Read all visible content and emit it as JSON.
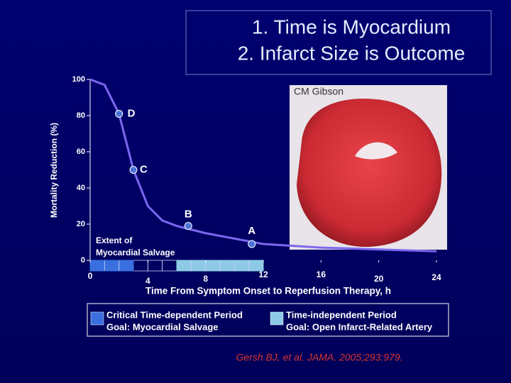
{
  "chart_data": {
    "type": "line",
    "title": [
      "1. Time is Myocardium",
      "2. Infarct Size is Outcome"
    ],
    "ylabel": "Mortality Reduction (%)",
    "xlabel": "Time From Symptom Onset to Reperfusion Therapy, h",
    "xlim": [
      0,
      24
    ],
    "xticks": [
      0,
      4,
      8,
      12,
      16,
      20,
      24
    ],
    "ylim": [
      0,
      100
    ],
    "yticks": [
      0,
      20,
      40,
      60,
      80,
      100
    ],
    "series": [
      {
        "color": "#7b68ee",
        "x": [
          0,
          1,
          2,
          3,
          4,
          5,
          6,
          8,
          12,
          16,
          20,
          24
        ],
        "values": [
          100,
          97,
          81,
          50,
          30,
          22,
          19,
          15,
          9,
          7,
          6,
          5
        ]
      }
    ],
    "points": [
      {
        "label": "D",
        "x": 2,
        "y": 81
      },
      {
        "label": "C",
        "x": 3,
        "y": 50
      },
      {
        "label": "B",
        "x": 6.8,
        "y": 19
      },
      {
        "label": "A",
        "x": 11.2,
        "y": 9
      }
    ],
    "point_color": "#4a72d8",
    "annotations": [
      "Extent of",
      "Myocardial Salvage"
    ],
    "periods": [
      {
        "name": "Critical Time-dependent Period",
        "goal": "Goal: Myocardial Salvage",
        "color": "#3a6fe0",
        "x": [
          0,
          3
        ]
      },
      {
        "name": "Time-independent Period",
        "goal": "Goal: Open Infarct-Related Artery",
        "color": "#8ecae6",
        "x": [
          6,
          12
        ]
      }
    ],
    "image_credit": "CM Gibson",
    "citation": "Gersh BJ, et al. JAMA. 2005;293:979."
  }
}
